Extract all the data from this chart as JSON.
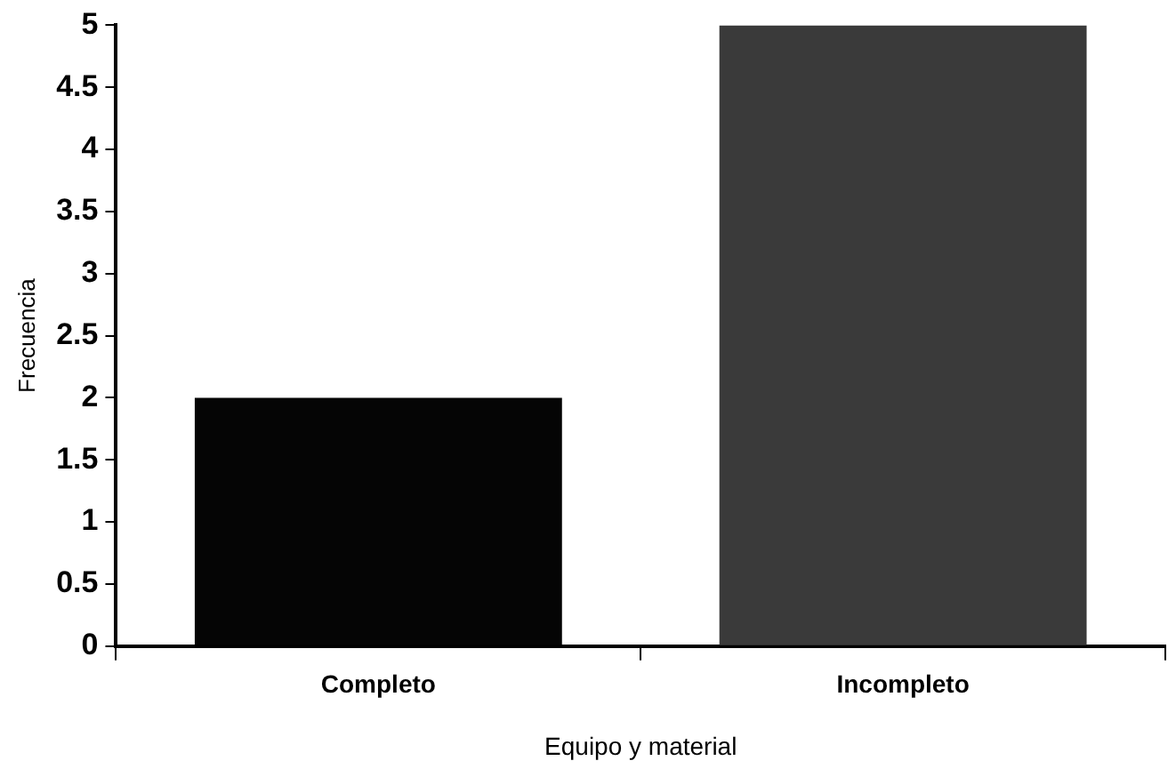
{
  "chart_data": {
    "type": "bar",
    "xlabel": "Equipo y material",
    "ylabel": "Frecuencia",
    "categories": [
      "Completo",
      "Incompleto"
    ],
    "values": [
      2,
      5
    ],
    "colors": [
      "#050505",
      "#3a3a3a"
    ],
    "ylim": [
      0,
      5
    ],
    "yticks": [
      0,
      0.5,
      1,
      1.5,
      2,
      2.5,
      3,
      3.5,
      4,
      4.5,
      5
    ],
    "grid": false,
    "legend": false
  }
}
